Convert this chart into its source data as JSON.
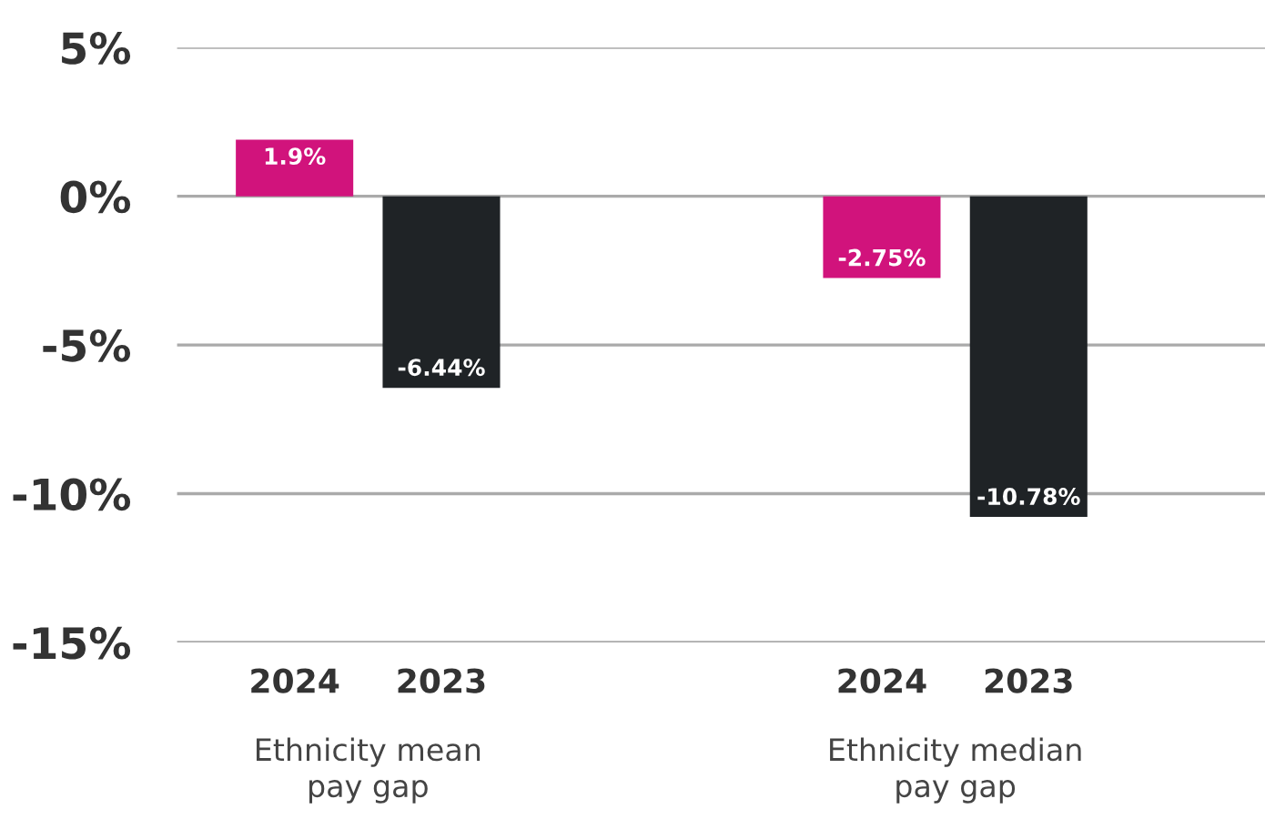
{
  "chart_data": {
    "type": "bar",
    "categories": [
      "2024",
      "2023",
      null,
      null,
      "2024",
      "2023"
    ],
    "values": [
      1.9,
      -6.44,
      null,
      null,
      -2.75,
      -10.78
    ],
    "colors": [
      "#d1137c",
      "#1f2326",
      "#1f2326",
      "#1f2326",
      "#d1137c",
      "#1f2326"
    ],
    "value_labels": [
      "1.9%",
      "-6.44%",
      null,
      null,
      "-2.75%",
      "-10.78%"
    ],
    "annotations": [
      "Ethnicity mean\npay gap",
      "Ethnicity median\npay gap"
    ],
    "ylim": [
      -15,
      5
    ],
    "yticks": [
      {
        "value": 5,
        "label": "5%"
      },
      {
        "value": 0,
        "label": "0%"
      },
      {
        "value": -5,
        "label": "-5%"
      },
      {
        "value": -10,
        "label": "-10%"
      },
      {
        "value": -15,
        "label": "-15%"
      }
    ],
    "grid": "y",
    "legend": false
  }
}
